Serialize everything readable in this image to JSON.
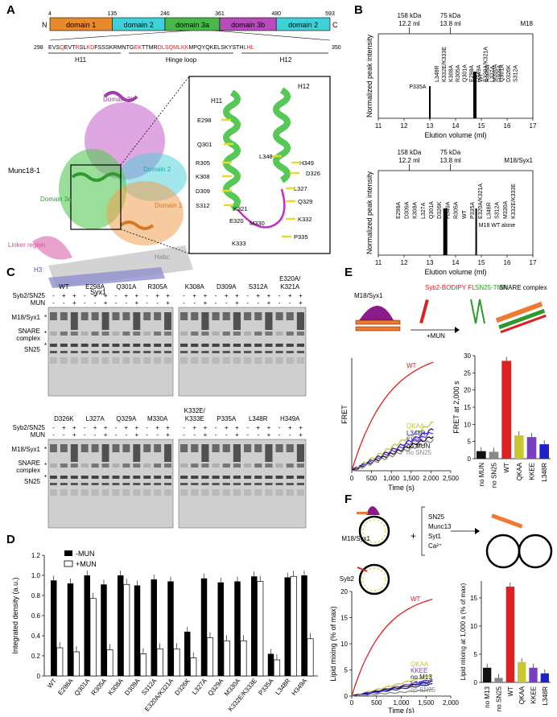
{
  "panelA": {
    "letter": "A",
    "domain_bar": {
      "ticks": [
        "4",
        "135",
        "246",
        "361",
        "480",
        "593"
      ],
      "n_label": "N",
      "c_label": "C",
      "domains": [
        {
          "label": "domain 1",
          "color": "#e8892b"
        },
        {
          "label": "domain 2",
          "color": "#3fd0d8"
        },
        {
          "label": "domain 3a",
          "color": "#49b84a"
        },
        {
          "label": "domain 3b",
          "color": "#b64dbb"
        },
        {
          "label": "domain 2",
          "color": "#3fd0d8"
        }
      ]
    },
    "sequence": {
      "start": "298",
      "end": "350",
      "segments": [
        {
          "t": "EVS",
          "c": "#000"
        },
        {
          "t": "Q",
          "c": "#d42b2b"
        },
        {
          "t": "EV",
          "c": "#000"
        },
        {
          "t": "T",
          "c": "#000"
        },
        {
          "t": "R",
          "c": "#d42b2b"
        },
        {
          "t": "S",
          "c": "#000"
        },
        {
          "t": "L",
          "c": "#000"
        },
        {
          "t": "KD",
          "c": "#d42b2b"
        },
        {
          "t": "FSSSKRMNTG",
          "c": "#000"
        },
        {
          "t": "EK",
          "c": "#d42b2b"
        },
        {
          "t": "TTMR",
          "c": "#000"
        },
        {
          "t": "DLS",
          "c": "#d42b2b"
        },
        {
          "t": "QMLKK",
          "c": "#d42b2b"
        },
        {
          "t": "MPQYQKELSKYSTH",
          "c": "#000"
        },
        {
          "t": "LHL",
          "c": "#d42b2b"
        }
      ],
      "h11": "H11",
      "hinge": "Hinge loop",
      "h12": "H12"
    },
    "structure_labels": {
      "munc": "Munc18-1",
      "d3b": "Domain 3b",
      "d2": "Domain 2",
      "d3a": "Domain 3a",
      "d1": "Domain 1",
      "linker": "Linker region",
      "habc": "Habc",
      "h3": "H3",
      "syx": "Syx1"
    },
    "zoom_labels": {
      "h11": "H11",
      "h12": "H12",
      "residues": [
        "E298",
        "Q301",
        "R305",
        "K308",
        "D309",
        "S312",
        "K321",
        "E320",
        "M330",
        "K333",
        "L348",
        "H349",
        "D326",
        "L327",
        "Q329",
        "K332",
        "P335"
      ]
    }
  },
  "panelB": {
    "letter": "B",
    "top": {
      "mw": [
        "158 kDa",
        "75 kDa"
      ],
      "ml": [
        "12.2 ml",
        "13.8 ml"
      ],
      "tag": "M18",
      "ylabel": "Normalized peak intensity",
      "xlabel": "Elution volume (ml)",
      "xticks": [
        "11",
        "12",
        "13",
        "14",
        "15",
        "16",
        "17"
      ],
      "peak_labels_left": [
        "L348R",
        "K332E/K333E",
        "K308A",
        "R305A",
        "Q301A",
        "E298A",
        "H349A",
        "E320A/K321A",
        "L327A",
        "D309A"
      ],
      "peak_labels_right": [
        "WT",
        "R305A",
        "M330A",
        "Q301A",
        "D326K",
        "S312A"
      ],
      "p335": "P335A"
    },
    "bottom": {
      "mw": [
        "158 kDa",
        "75 kDa"
      ],
      "ml": [
        "12.2 ml",
        "13.8 ml"
      ],
      "tag": "M18/Syx1",
      "ylabel": "Normalized peak intensity",
      "xlabel": "Elution volume (ml)",
      "xticks": [
        "11",
        "12",
        "13",
        "14",
        "15",
        "16",
        "17"
      ],
      "peak_labels": [
        "E298A",
        "D309A",
        "K308A",
        "L327A",
        "Q301A",
        "D326K",
        "H349A",
        "R305A",
        "WT",
        "P335A",
        "E320A/K321A",
        "L348R",
        "S312A",
        "M330A",
        "K332E/K333E"
      ],
      "alone": "M18 WT alone"
    }
  },
  "panelC": {
    "letter": "C",
    "rows": [
      "Syb2/SN25",
      "MUN"
    ],
    "bands": [
      "M18/Syx1",
      "SNARE complex",
      "SN25"
    ],
    "gel1": [
      "WT",
      "E298A",
      "Q301A",
      "R305A"
    ],
    "gel2": [
      "K308A",
      "D309A",
      "S312A",
      "E320A/ K321A"
    ],
    "gel3": [
      "D326K",
      "L327A",
      "Q329A",
      "M330A"
    ],
    "gel4": [
      "K332E/ K333E",
      "P335A",
      "L348R",
      "H349A"
    ],
    "signs": [
      "-",
      "+",
      "+",
      "-",
      "+",
      "-",
      "-",
      "+"
    ]
  },
  "panelD": {
    "letter": "D",
    "legend": [
      "-MUN",
      "+MUN"
    ],
    "ylabel": "Integrated density (a.u.)",
    "yticks": [
      "0",
      "0.2",
      "0.4",
      "0.6",
      "0.8",
      "1.0",
      "1.2"
    ],
    "chart_data": {
      "type": "bar",
      "categories": [
        "WT",
        "E298A",
        "Q301A",
        "R305A",
        "K308A",
        "D309A",
        "S312A",
        "E320A/K321A",
        "D326K",
        "L327A",
        "Q329A",
        "M330A",
        "K332E/K333E",
        "P335A",
        "L348R",
        "H349A"
      ],
      "series": [
        {
          "name": "-MUN",
          "values": [
            0.95,
            0.92,
            1.0,
            0.91,
            1.0,
            0.9,
            0.96,
            0.94,
            0.44,
            0.97,
            0.93,
            0.94,
            0.99,
            0.22,
            0.98,
            1.0
          ]
        },
        {
          "name": "+MUN",
          "values": [
            0.28,
            0.24,
            0.77,
            0.26,
            0.91,
            0.22,
            0.27,
            0.27,
            0.18,
            0.38,
            0.35,
            0.35,
            0.94,
            0.16,
            0.99,
            0.37
          ]
        }
      ],
      "ylim": [
        0,
        1.2
      ]
    }
  },
  "panelE": {
    "letter": "E",
    "schematic": {
      "m18syx": "M18/Syx1",
      "syb2": "Syb2-BODIPY FL",
      "sn25": "SN25-TMR",
      "snare": "SNARE complex",
      "mun": "+MUN"
    },
    "traces": {
      "ylabel": "FRET",
      "xlabel": "Time (s)",
      "xticks": [
        "0",
        "500",
        "1,000",
        "1,500",
        "2,000",
        "2,500"
      ],
      "labels": [
        "WT",
        "QKAA",
        "L348R",
        "KKEE",
        "no MUN",
        "no SN25"
      ],
      "colors": [
        "#e02020",
        "#c8c830",
        "#2020c8",
        "#7a3fc0",
        "#111111",
        "#888888"
      ]
    },
    "bars": {
      "ylabel": "FRET at 2,000 s",
      "categories": [
        "no MUN",
        "no SN25",
        "WT",
        "QKAA",
        "KKEE",
        "L348R"
      ],
      "chart_data": {
        "type": "bar",
        "values": [
          2.2,
          2.0,
          28.5,
          6.8,
          6.3,
          4.2
        ],
        "ylim": [
          0,
          30
        ]
      },
      "yticks": [
        "0",
        "5",
        "10",
        "15",
        "20",
        "25",
        "30"
      ]
    }
  },
  "panelF": {
    "letter": "F",
    "schematic": {
      "m18syx": "M18/Syx1",
      "syb2": "Syb2",
      "plus": "+",
      "list": [
        "SN25",
        "Munc13",
        "Syt1",
        "Ca²⁺"
      ]
    },
    "traces": {
      "ylabel": "Lipid mixing (% of max)",
      "xlabel": "Time (s)",
      "xticks": [
        "0",
        "500",
        "1,000",
        "1,500",
        "2,000"
      ],
      "yticks": [
        "0",
        "5",
        "10",
        "15",
        "20"
      ],
      "labels": [
        "WT",
        "QKAA",
        "KKEE",
        "no M13",
        "L348R",
        "no SN25"
      ],
      "colors": [
        "#e02020",
        "#c8c830",
        "#7a3fc0",
        "#111111",
        "#2020c8",
        "#888888"
      ]
    },
    "bars": {
      "ylabel": "Lipid mixing at 1,000 s (% of max)",
      "categories": [
        "no M13",
        "no SN25",
        "WT",
        "QKAA",
        "KKEE",
        "L348R"
      ],
      "chart_data": {
        "type": "bar",
        "values": [
          2.6,
          0.8,
          17.0,
          3.6,
          2.6,
          1.6
        ],
        "ylim": [
          0,
          18
        ]
      },
      "yticks": [
        "0",
        "5",
        "10",
        "15"
      ]
    }
  }
}
